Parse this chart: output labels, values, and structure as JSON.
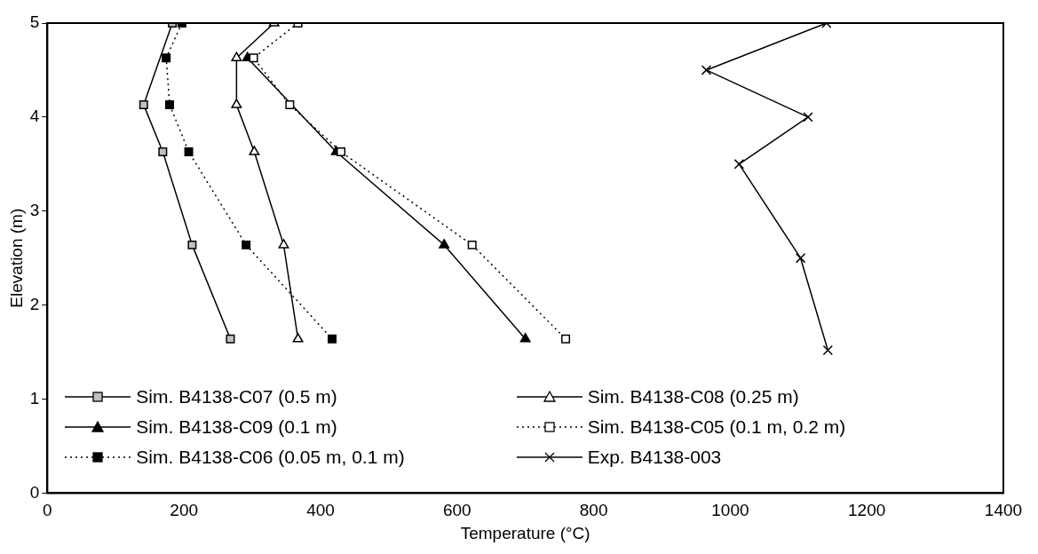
{
  "chart_data": {
    "type": "line",
    "xlabel": "Temperature (°C)",
    "ylabel": "Elevation (m)",
    "xlim": [
      0,
      1400
    ],
    "xticks": [
      0,
      200,
      400,
      600,
      800,
      1000,
      1200,
      1400
    ],
    "ylim": [
      0,
      5
    ],
    "yticks": [
      0,
      1,
      2,
      3,
      4,
      5
    ],
    "grid": false,
    "legend": "bottom",
    "series": [
      {
        "name": "Sim. B4138-C07 (0.5 m)",
        "color": "#c0c0c0",
        "marker": "square",
        "line_style": "solid",
        "x": [
          183,
          null,
          141,
          169,
          212,
          268
        ],
        "values": [
          5,
          null,
          4.13,
          3.63,
          2.64,
          1.64
        ]
      },
      {
        "name": "Sim. B4138-C08 (0.25 m)",
        "color": "#ffffff",
        "marker": "triangle",
        "line_style": "solid",
        "x": [
          332,
          277,
          277,
          303,
          346,
          367
        ],
        "values": [
          5,
          4.63,
          4.13,
          3.63,
          2.64,
          1.64
        ]
      },
      {
        "name": "Sim. B4138-C09 (0.1 m)",
        "color": "#000000",
        "marker": "triangle",
        "line_style": "solid",
        "x": [
          293,
          null,
          423,
          581,
          700
        ],
        "values": [
          4.63,
          null,
          3.63,
          2.64,
          1.64
        ]
      },
      {
        "name": "Sim. B4138-C05 (0.1 m, 0.2 m)",
        "color": "#ffffff",
        "marker": "square",
        "line_style": "dotted",
        "x": [
          367,
          302,
          355,
          430,
          622,
          759
        ],
        "values": [
          5,
          4.63,
          4.13,
          3.63,
          2.64,
          1.64
        ]
      },
      {
        "name": "Sim. B4138-C06 (0.05 m, 0.1 m)",
        "color": "#000000",
        "marker": "square",
        "line_style": "dotted",
        "x": [
          197,
          174,
          179,
          207,
          291,
          417
        ],
        "values": [
          5,
          4.63,
          4.13,
          3.63,
          2.64,
          1.64
        ]
      },
      {
        "name": "Exp. B4138-003",
        "color": "#000000",
        "marker": "cross",
        "line_style": "solid",
        "x": [
          1141,
          965,
          1114,
          1013,
          1103,
          1143
        ],
        "values": [
          5,
          4.5,
          4,
          3.5,
          2.5,
          1.52
        ]
      }
    ]
  }
}
